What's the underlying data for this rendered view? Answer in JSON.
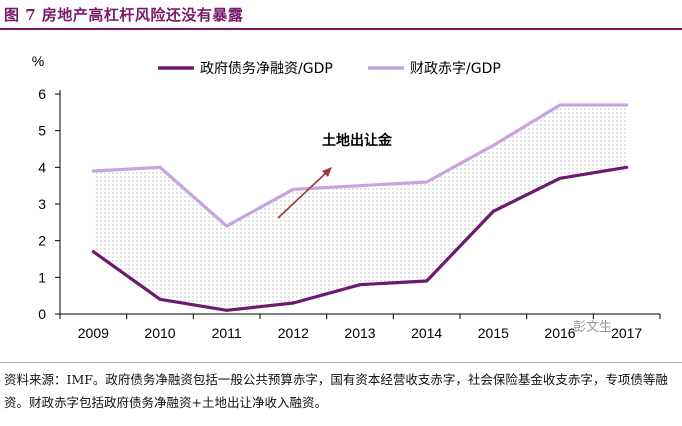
{
  "figure": {
    "title": "图 7 房地产高杠杆风险还没有暴露",
    "source": "资料来源：IMF。政府债务净融资包括一般公共预算赤字，国有资本经营收支赤字，社会保险基金收支赤字，专项债等融资。财政赤字包括政府债务净融资+土地出让净收入融资。",
    "watermark": "彭文生"
  },
  "chart_data": {
    "type": "line",
    "ylabel": "%",
    "xlabel": "",
    "x": [
      "2009",
      "2010",
      "2011",
      "2012",
      "2013",
      "2014",
      "2015",
      "2016",
      "2017"
    ],
    "ylim": [
      0,
      6
    ],
    "yticks": [
      "0",
      "1",
      "2",
      "3",
      "4",
      "5",
      "6"
    ],
    "grid": false,
    "legend_position": "top",
    "series": [
      {
        "name": "政府债务净融资/GDP",
        "color": "#6b1a6e",
        "values": [
          1.7,
          0.4,
          0.1,
          0.3,
          0.8,
          0.9,
          2.8,
          3.7,
          4.0
        ]
      },
      {
        "name": "财政赤字/GDP",
        "color": "#c7a3e0",
        "values": [
          3.9,
          4.0,
          2.4,
          3.4,
          3.5,
          3.6,
          4.6,
          5.7,
          5.7
        ]
      }
    ],
    "annotation": {
      "text": "土地出让金",
      "arrow_color": "#9b3a3a"
    }
  }
}
